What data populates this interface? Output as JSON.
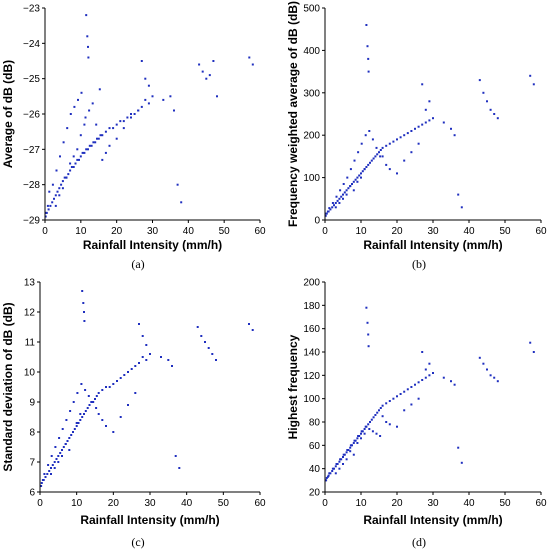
{
  "chart_data": [
    {
      "type": "scatter",
      "caption": "(a)",
      "xlabel": "Rainfall Intensity (mm/h)",
      "ylabel": "Average of dB (dB)",
      "xlim": [
        0,
        60
      ],
      "ylim": [
        -29,
        -23
      ],
      "xticks": [
        0,
        10,
        20,
        30,
        40,
        50,
        60
      ],
      "yticks": [
        -29,
        -28,
        -27,
        -26,
        -25,
        -24,
        -23
      ],
      "grid": false,
      "color": "#1f2fbf",
      "x": [
        0.2,
        0.5,
        1,
        1.5,
        2,
        2.5,
        3,
        3.5,
        4,
        4.5,
        5,
        5.5,
        6,
        6.5,
        7,
        7.5,
        8,
        8.5,
        9,
        9.5,
        10,
        10.5,
        11,
        11.5,
        12,
        12.5,
        13,
        13.5,
        14,
        14.5,
        15,
        15.5,
        16,
        17,
        18,
        19,
        20,
        21,
        22,
        23,
        24,
        25,
        26,
        27,
        28,
        29,
        30,
        33,
        35,
        36,
        37,
        38,
        43,
        44,
        45,
        46,
        47,
        48,
        57,
        58,
        0.3,
        0.8,
        1.2,
        2.2,
        3.2,
        4.2,
        5.2,
        6.2,
        7.2,
        8.2,
        9.2,
        10.2,
        11.3,
        12.3,
        13.3,
        14.3,
        15.3,
        11.5,
        11.8,
        12,
        12.1,
        27,
        28,
        29,
        16,
        17,
        18,
        20,
        22,
        24,
        26,
        9,
        10,
        11,
        7,
        8,
        6,
        5,
        4,
        3
      ],
      "y": [
        -28.9,
        -28.8,
        -28.7,
        -28.6,
        -28.5,
        -28.4,
        -28.3,
        -28.2,
        -28.1,
        -28.0,
        -27.9,
        -27.8,
        -27.8,
        -27.7,
        -27.6,
        -27.5,
        -27.5,
        -27.4,
        -27.3,
        -27.3,
        -27.2,
        -27.1,
        -27.1,
        -27.0,
        -27.0,
        -26.9,
        -26.9,
        -26.8,
        -26.8,
        -26.7,
        -26.7,
        -26.6,
        -26.6,
        -26.5,
        -26.4,
        -26.4,
        -26.3,
        -26.2,
        -26.2,
        -26.1,
        -26.0,
        -26.0,
        -25.9,
        -25.8,
        -25.6,
        -25.7,
        -25.5,
        -25.6,
        -25.5,
        -25.9,
        -28.0,
        -28.5,
        -24.6,
        -24.8,
        -25.0,
        -24.9,
        -24.5,
        -25.5,
        -24.4,
        -24.6,
        -28.8,
        -28.6,
        -28.2,
        -28.0,
        -27.6,
        -27.2,
        -26.8,
        -26.4,
        -26.0,
        -25.8,
        -25.6,
        -25.4,
        -26.1,
        -25.9,
        -25.7,
        -26.3,
        -25.3,
        -23.2,
        -23.8,
        -24.1,
        -24.4,
        -24.5,
        -25.0,
        -25.2,
        -27.3,
        -27.1,
        -26.9,
        -26.7,
        -26.4,
        -26.1,
        -25.9,
        -27.0,
        -26.6,
        -26.3,
        -27.4,
        -27.2,
        -27.8,
        -28.1,
        -28.3,
        -28.6
      ]
    },
    {
      "type": "scatter",
      "caption": "(b)",
      "xlabel": "Rainfall Intensity (mm/h)",
      "ylabel": "Frequency weighted average of dB (dB)",
      "xlim": [
        0,
        60
      ],
      "ylim": [
        0,
        500
      ],
      "xticks": [
        0,
        10,
        20,
        30,
        40,
        50,
        60
      ],
      "yticks": [
        0,
        100,
        200,
        300,
        400,
        500
      ],
      "grid": false,
      "color": "#1f2fbf",
      "x": [
        0.2,
        0.5,
        1,
        1.5,
        2,
        2.5,
        3,
        3.5,
        4,
        4.5,
        5,
        5.5,
        6,
        6.5,
        7,
        7.5,
        8,
        8.5,
        9,
        9.5,
        10,
        10.5,
        11,
        11.5,
        12,
        12.5,
        13,
        13.5,
        14,
        14.5,
        15,
        15.5,
        16,
        17,
        18,
        19,
        20,
        21,
        22,
        23,
        24,
        25,
        26,
        27,
        28,
        29,
        30,
        33,
        35,
        36,
        37,
        38,
        43,
        44,
        45,
        46,
        47,
        48,
        57,
        58,
        0.3,
        0.8,
        1.2,
        2.2,
        3.2,
        4.2,
        5.2,
        6.2,
        7.2,
        8.2,
        9.2,
        10.2,
        11.3,
        12.3,
        13.3,
        14.3,
        15.3,
        11.5,
        11.8,
        12,
        12.1,
        27,
        28,
        29,
        16,
        17,
        18,
        20,
        22,
        24,
        26,
        9,
        10,
        11,
        7,
        8,
        6,
        5,
        4,
        3
      ],
      "y": [
        10,
        15,
        20,
        25,
        30,
        35,
        40,
        45,
        50,
        55,
        60,
        65,
        70,
        75,
        80,
        85,
        90,
        95,
        100,
        105,
        110,
        115,
        120,
        125,
        130,
        135,
        140,
        145,
        150,
        155,
        160,
        165,
        170,
        175,
        180,
        185,
        190,
        195,
        200,
        205,
        210,
        215,
        220,
        225,
        230,
        235,
        240,
        230,
        215,
        200,
        60,
        30,
        330,
        300,
        280,
        260,
        250,
        240,
        340,
        320,
        15,
        20,
        28,
        40,
        55,
        70,
        85,
        100,
        120,
        140,
        160,
        180,
        200,
        210,
        190,
        170,
        150,
        460,
        410,
        380,
        350,
        320,
        260,
        280,
        150,
        130,
        120,
        110,
        140,
        160,
        180,
        90,
        100,
        120,
        80,
        70,
        60,
        50,
        40,
        30
      ]
    },
    {
      "type": "scatter",
      "caption": "(c)",
      "xlabel": "Rainfall Intensity (mm/h)",
      "ylabel": "Standard deviation of dB (dB)",
      "xlim": [
        0,
        60
      ],
      "ylim": [
        6,
        13
      ],
      "xticks": [
        0,
        10,
        20,
        30,
        40,
        50,
        60
      ],
      "yticks": [
        6,
        7,
        8,
        9,
        10,
        11,
        12,
        13
      ],
      "grid": false,
      "color": "#1f2fbf",
      "x": [
        0.2,
        0.5,
        1,
        1.5,
        2,
        2.5,
        3,
        3.5,
        4,
        4.5,
        5,
        5.5,
        6,
        6.5,
        7,
        7.5,
        8,
        8.5,
        9,
        9.5,
        10,
        10.5,
        11,
        11.5,
        12,
        12.5,
        13,
        13.5,
        14,
        14.5,
        15,
        15.5,
        16,
        17,
        18,
        19,
        20,
        21,
        22,
        23,
        24,
        25,
        26,
        27,
        28,
        29,
        30,
        33,
        35,
        36,
        37,
        38,
        43,
        44,
        45,
        46,
        47,
        48,
        57,
        58,
        0.3,
        0.8,
        1.2,
        2.2,
        3.2,
        4.2,
        5.2,
        6.2,
        7.2,
        8.2,
        9.2,
        10.2,
        11.3,
        12.3,
        13.3,
        14.3,
        15.3,
        11.5,
        11.8,
        12,
        12.1,
        27,
        28,
        29,
        16,
        17,
        18,
        20,
        22,
        24,
        26,
        9,
        10,
        11,
        7,
        8,
        6,
        5,
        4,
        3
      ],
      "y": [
        6.2,
        6.3,
        6.4,
        6.5,
        6.6,
        6.7,
        6.8,
        6.9,
        7.0,
        7.1,
        7.2,
        7.3,
        7.4,
        7.5,
        7.6,
        7.7,
        7.8,
        7.9,
        8.0,
        8.1,
        8.2,
        8.3,
        8.4,
        8.5,
        8.6,
        8.7,
        8.8,
        8.9,
        9.0,
        9.0,
        9.1,
        9.2,
        9.3,
        9.4,
        9.5,
        9.5,
        9.6,
        9.7,
        9.8,
        9.9,
        10.0,
        10.1,
        10.2,
        10.3,
        10.5,
        10.4,
        10.6,
        10.5,
        10.4,
        10.2,
        7.2,
        6.8,
        11.5,
        11.2,
        11.0,
        10.8,
        10.6,
        10.4,
        11.6,
        11.4,
        6.2,
        6.4,
        6.6,
        6.9,
        7.2,
        7.5,
        7.8,
        8.1,
        8.4,
        8.7,
        9.0,
        9.3,
        9.6,
        9.4,
        9.2,
        9.0,
        8.8,
        12.7,
        12.3,
        12.0,
        11.7,
        11.6,
        11.2,
        10.9,
        8.6,
        8.4,
        8.2,
        8.0,
        8.5,
        8.9,
        9.3,
        8.0,
        8.3,
        8.6,
        7.6,
        7.4,
        7.2,
        7.0,
        6.8,
        6.6
      ]
    },
    {
      "type": "scatter",
      "caption": "(d)",
      "xlabel": "Rainfall Intensity (mm/h)",
      "ylabel": "Highest frequency",
      "xlim": [
        0,
        60
      ],
      "ylim": [
        20,
        200
      ],
      "xticks": [
        0,
        10,
        20,
        30,
        40,
        50,
        60
      ],
      "yticks": [
        20,
        40,
        60,
        80,
        100,
        120,
        140,
        160,
        180,
        200
      ],
      "grid": false,
      "color": "#1f2fbf",
      "x": [
        0.2,
        0.5,
        1,
        1.5,
        2,
        2.5,
        3,
        3.5,
        4,
        4.5,
        5,
        5.5,
        6,
        6.5,
        7,
        7.5,
        8,
        8.5,
        9,
        9.5,
        10,
        10.5,
        11,
        11.5,
        12,
        12.5,
        13,
        13.5,
        14,
        14.5,
        15,
        15.5,
        16,
        17,
        18,
        19,
        20,
        21,
        22,
        23,
        24,
        25,
        26,
        27,
        28,
        29,
        30,
        33,
        35,
        36,
        37,
        38,
        43,
        44,
        45,
        46,
        47,
        48,
        57,
        58,
        0.3,
        0.8,
        1.2,
        2.2,
        3.2,
        4.2,
        5.2,
        6.2,
        7.2,
        8.2,
        9.2,
        10.2,
        11.3,
        12.3,
        13.3,
        14.3,
        15.3,
        11.5,
        11.8,
        12,
        12.1,
        27,
        28,
        29,
        16,
        17,
        18,
        20,
        22,
        24,
        26,
        9,
        10,
        11,
        7,
        8,
        6,
        5,
        4,
        3
      ],
      "y": [
        30,
        32,
        34,
        36,
        38,
        40,
        42,
        44,
        46,
        48,
        50,
        52,
        54,
        56,
        58,
        60,
        62,
        64,
        66,
        68,
        70,
        72,
        74,
        76,
        78,
        80,
        82,
        84,
        86,
        88,
        90,
        92,
        94,
        96,
        98,
        100,
        102,
        104,
        106,
        108,
        110,
        112,
        114,
        116,
        118,
        120,
        122,
        118,
        115,
        112,
        58,
        45,
        135,
        130,
        125,
        120,
        118,
        115,
        148,
        140,
        30,
        33,
        36,
        40,
        44,
        48,
        52,
        56,
        60,
        64,
        68,
        72,
        76,
        74,
        72,
        70,
        68,
        178,
        165,
        155,
        145,
        140,
        125,
        130,
        85,
        80,
        78,
        76,
        90,
        95,
        100,
        62,
        66,
        70,
        55,
        52,
        48,
        44,
        40,
        36
      ]
    }
  ]
}
